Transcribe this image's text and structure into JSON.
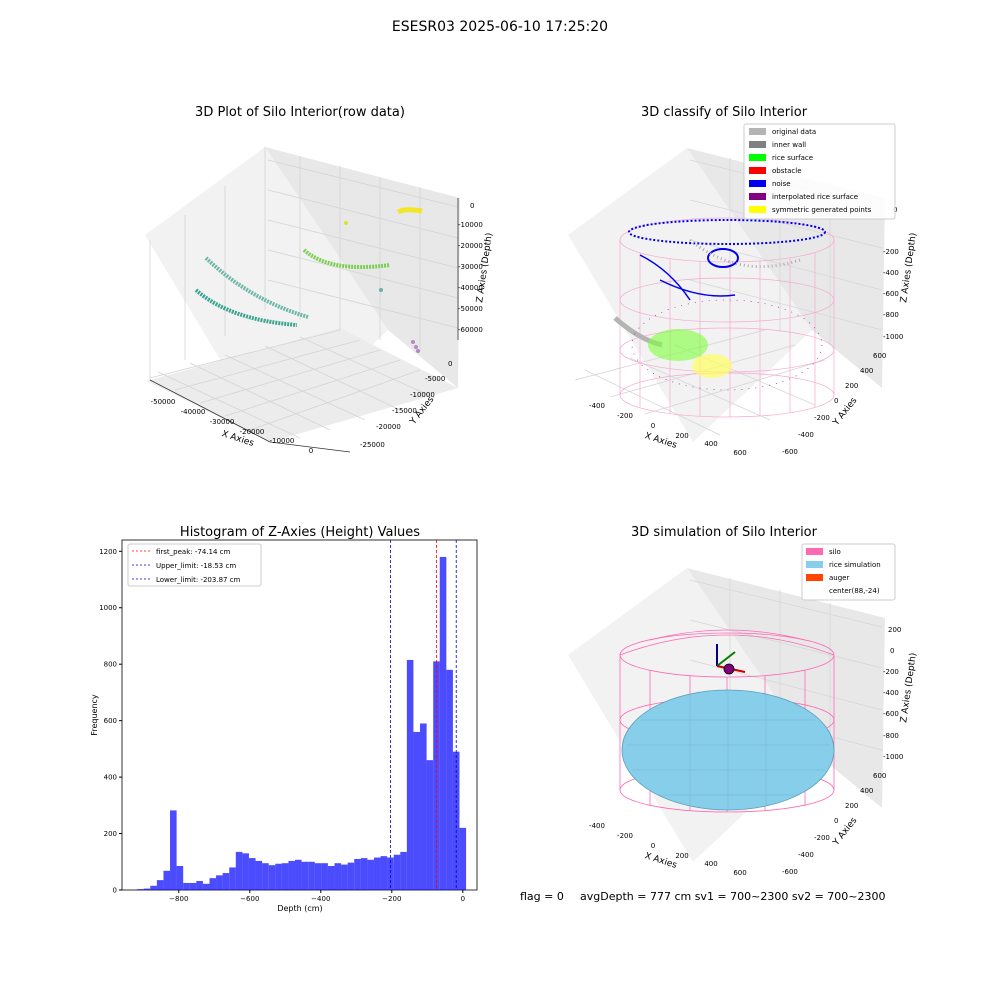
{
  "suptitle": "ESESR03 2025-06-10 17:25:20",
  "footer": {
    "flag": "flag = 0",
    "avg": "avgDepth = 777 cm  sv1 = 700~2300  sv2 = 700~2300"
  },
  "panels": {
    "raw": {
      "title": "3D Plot of Silo Interior(row data)",
      "xlabel": "X Axies",
      "ylabel": "Y Axies",
      "zlabel": "Z Axies (Depth)",
      "xticks": [
        "-50000",
        "-40000",
        "-30000",
        "-20000",
        "-10000",
        "0"
      ],
      "yticks": [
        "0",
        "-5000",
        "-10000",
        "-15000",
        "-20000",
        "-25000"
      ],
      "zticks": [
        "0",
        "-10000",
        "-20000",
        "-30000",
        "-40000",
        "-50000",
        "-60000"
      ]
    },
    "classify": {
      "title": "3D classify of Silo Interior",
      "xlabel": "X Axies",
      "ylabel": "Y Axies",
      "zlabel": "Z Axies (Depth)",
      "xticks": [
        "-400",
        "-200",
        "0",
        "200",
        "400",
        "600"
      ],
      "yticks": [
        "600",
        "400",
        "200",
        "0",
        "-200",
        "-400",
        "-600"
      ],
      "zticks": [
        "0",
        "-200",
        "-400",
        "-600",
        "-800",
        "-1000"
      ],
      "legend": [
        {
          "label": "original data",
          "color": "#b4b4b4"
        },
        {
          "label": "inner wall",
          "color": "#808080"
        },
        {
          "label": "rice surface",
          "color": "#00ff00"
        },
        {
          "label": "obstacle",
          "color": "#ff0000"
        },
        {
          "label": "noise",
          "color": "#0000ee"
        },
        {
          "label": "interpolated rice surface",
          "color": "#800080"
        },
        {
          "label": "symmetric generated points",
          "color": "#ffff00"
        }
      ]
    },
    "simulation": {
      "title": "3D simulation of Silo Interior",
      "xlabel": "X Axies",
      "ylabel": "Y Axies",
      "zlabel": "Z Axies (Depth)",
      "xticks": [
        "-400",
        "-200",
        "0",
        "200",
        "400",
        "600"
      ],
      "yticks": [
        "600",
        "400",
        "200",
        "0",
        "-200",
        "-400",
        "-600"
      ],
      "zticks": [
        "200",
        "0",
        "-200",
        "-400",
        "-600",
        "-800",
        "-1000"
      ],
      "legend": [
        {
          "label": "silo",
          "color": "#ff69b4"
        },
        {
          "label": "rice simulation",
          "color": "#87ceeb"
        },
        {
          "label": "auger",
          "color": "#ff4500"
        },
        {
          "label": "center(88,-24)",
          "color": "none"
        }
      ]
    }
  },
  "chart_data": {
    "type": "bar",
    "title": "Histogram of Z-Axies (Height) Values",
    "xlabel": "Depth (cm)",
    "ylabel": "Frequency",
    "xlim": [
      -960,
      40
    ],
    "ylim": [
      0,
      1240
    ],
    "xticks": [
      -800,
      -600,
      -400,
      -200,
      0
    ],
    "yticks": [
      0,
      200,
      400,
      600,
      800,
      1000,
      1200
    ],
    "bin_width": 18.53,
    "bar_color": "#0000ff",
    "bin_starts": [
      -917.4,
      -898.8,
      -880.3,
      -861.8,
      -843.2,
      -824.7,
      -806.2,
      -787.6,
      -769.1,
      -750.6,
      -732.0,
      -713.5,
      -695.0,
      -676.5,
      -657.9,
      -639.4,
      -620.9,
      -602.3,
      -583.8,
      -565.3,
      -546.7,
      -528.2,
      -509.7,
      -491.1,
      -472.6,
      -454.1,
      -435.5,
      -417.0,
      -398.5,
      -380.0,
      -361.4,
      -342.9,
      -324.4,
      -305.8,
      -287.3,
      -268.8,
      -250.2,
      -231.7,
      -213.2,
      -194.6,
      -176.1,
      -157.6,
      -139.0,
      -120.5,
      -102.0,
      -83.4,
      -64.9,
      -46.4,
      -27.9,
      -9.3
    ],
    "values": [
      3,
      5,
      15,
      35,
      68,
      282,
      85,
      25,
      25,
      32,
      22,
      42,
      52,
      60,
      80,
      135,
      130,
      113,
      103,
      95,
      88,
      93,
      95,
      103,
      107,
      100,
      100,
      95,
      95,
      85,
      95,
      90,
      97,
      110,
      113,
      107,
      115,
      120,
      115,
      125,
      135,
      815,
      560,
      590,
      460,
      810,
      1180,
      780,
      490,
      220
    ],
    "vlines": [
      {
        "label": "first_peak: -74.14 cm",
        "x": -74.14,
        "color": "#ff0000"
      },
      {
        "label": "Upper_limit: -18.53 cm",
        "x": -18.53,
        "color": "#0000cc"
      },
      {
        "label": "Lower_limit: -203.87 cm",
        "x": -203.87,
        "color": "#0000cc"
      }
    ],
    "legend_position": "top-left"
  }
}
